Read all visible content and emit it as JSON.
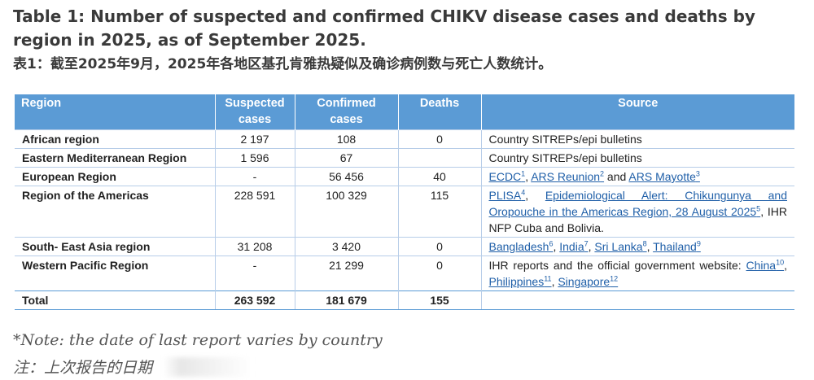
{
  "title_en": "Table 1: Number of suspected and confirmed CHIKV disease cases and deaths by region in 2025, as of September 2025.",
  "title_zh": "表1：截至2025年9月，2025年各地区基孔肯雅热疑似及确诊病例数与死亡人数统计。",
  "headers": {
    "region": "Region",
    "suspected": "Suspected cases",
    "confirmed": "Confirmed cases",
    "deaths": "Deaths",
    "source": "Source"
  },
  "rows": [
    {
      "region": "African region",
      "suspected": "2 197",
      "confirmed": "108",
      "deaths": "0",
      "source": [
        {
          "text": "Country SITREPs/epi bulletins"
        }
      ]
    },
    {
      "region": "Eastern Mediterranean Region",
      "suspected": "1 596",
      "confirmed": "67",
      "deaths": "",
      "source": [
        {
          "text": "Country SITREPs/epi bulletins"
        }
      ]
    },
    {
      "region": "European Region",
      "suspected": "-",
      "confirmed": "56 456",
      "deaths": "40",
      "source": [
        {
          "link": "ECDC",
          "sup": "1"
        },
        {
          "text": ", "
        },
        {
          "link": "ARS Reunion",
          "sup": "2"
        },
        {
          "text": " and "
        },
        {
          "link": "ARS Mayotte",
          "sup": "3"
        }
      ]
    },
    {
      "region": "Region of the Americas",
      "suspected": "228 591",
      "confirmed": "100 329",
      "deaths": "115",
      "source": [
        {
          "link": "PLISA",
          "sup": "4"
        },
        {
          "text": ", "
        },
        {
          "link": "Epidemiological Alert: Chikungunya and Oropouche in the Americas Region, 28 August 2025",
          "sup": "5"
        },
        {
          "text": ", IHR NFP Cuba and Bolivia."
        }
      ]
    },
    {
      "region": "South- East Asia region",
      "suspected": "31 208",
      "confirmed": "3 420",
      "deaths": "0",
      "source": [
        {
          "link": "Bangladesh",
          "sup": "6"
        },
        {
          "text": ", "
        },
        {
          "link": "India",
          "sup": "7"
        },
        {
          "text": ", "
        },
        {
          "link": "Sri Lanka",
          "sup": "8"
        },
        {
          "text": ", "
        },
        {
          "link": "Thailand",
          "sup": "9"
        }
      ]
    },
    {
      "region": "Western Pacific Region",
      "suspected": "-",
      "confirmed": "21 299",
      "deaths": "0",
      "source": [
        {
          "text": "IHR reports and the official government website: "
        },
        {
          "link": "China",
          "sup": "10"
        },
        {
          "text": ", "
        },
        {
          "link": "Philippines",
          "sup": "11"
        },
        {
          "text": ", "
        },
        {
          "link": "Singapore",
          "sup": "12"
        }
      ]
    }
  ],
  "total": {
    "region": "Total",
    "suspected": "263 592",
    "confirmed": "181 679",
    "deaths": "155",
    "source": ""
  },
  "note_en": "*Note: the date of last report varies by country",
  "note_zh": "注：上次报告的日期"
}
